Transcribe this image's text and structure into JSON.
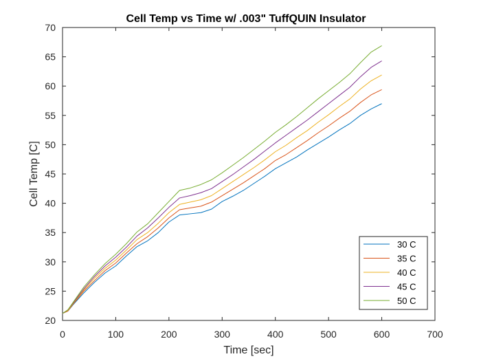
{
  "chart_data": {
    "type": "line",
    "title": "Cell Temp vs Time w/ .003\" TuffQUIN Insulator",
    "xlabel": "Time [sec]",
    "ylabel": "Cell Temp [C]",
    "xlim": [
      0,
      700
    ],
    "ylim": [
      20,
      70
    ],
    "xticks": [
      "0",
      "100",
      "200",
      "300",
      "400",
      "500",
      "600",
      "700"
    ],
    "yticks": [
      "20",
      "25",
      "30",
      "35",
      "40",
      "45",
      "50",
      "55",
      "60",
      "65",
      "70"
    ],
    "grid": false,
    "legend_position": "bottom-right",
    "x": [
      0,
      10,
      20,
      40,
      60,
      80,
      100,
      120,
      140,
      160,
      180,
      200,
      220,
      240,
      260,
      280,
      300,
      320,
      340,
      360,
      380,
      400,
      420,
      440,
      460,
      480,
      500,
      520,
      540,
      560,
      580,
      600
    ],
    "series": [
      {
        "name": "30 C",
        "color": "#0072BD",
        "values": [
          21.2,
          21.6,
          22.7,
          24.7,
          26.5,
          28.1,
          29.3,
          31.0,
          32.6,
          33.6,
          35.0,
          36.8,
          38.0,
          38.2,
          38.4,
          39.0,
          40.3,
          41.2,
          42.2,
          43.4,
          44.6,
          45.9,
          46.9,
          47.9,
          49.1,
          50.2,
          51.3,
          52.5,
          53.6,
          55.0,
          56.1,
          57.0
        ]
      },
      {
        "name": "35 C",
        "color": "#D95319",
        "values": [
          21.2,
          21.6,
          22.8,
          25.0,
          26.8,
          28.5,
          29.8,
          31.5,
          33.1,
          34.3,
          35.8,
          37.5,
          38.9,
          39.2,
          39.5,
          40.2,
          41.3,
          42.4,
          43.5,
          44.7,
          45.9,
          47.3,
          48.3,
          49.5,
          50.7,
          52.0,
          53.2,
          54.5,
          55.7,
          57.2,
          58.5,
          59.4
        ]
      },
      {
        "name": "40 C",
        "color": "#EDB120",
        "values": [
          21.2,
          21.7,
          22.9,
          25.2,
          27.2,
          28.9,
          30.3,
          32.0,
          33.8,
          35.0,
          36.6,
          38.4,
          39.8,
          40.2,
          40.6,
          41.3,
          42.5,
          43.7,
          44.9,
          46.1,
          47.4,
          48.8,
          49.9,
          51.2,
          52.4,
          53.8,
          55.1,
          56.5,
          57.8,
          59.5,
          60.9,
          61.9
        ]
      },
      {
        "name": "45 C",
        "color": "#7E2F8E",
        "values": [
          21.2,
          21.8,
          23.0,
          25.4,
          27.5,
          29.3,
          30.8,
          32.5,
          34.4,
          35.8,
          37.5,
          39.3,
          40.9,
          41.3,
          41.8,
          42.5,
          43.7,
          44.9,
          46.2,
          47.5,
          48.9,
          50.3,
          51.6,
          52.9,
          54.2,
          55.6,
          57.0,
          58.4,
          59.8,
          61.6,
          63.2,
          64.3
        ]
      },
      {
        "name": "50 C",
        "color": "#77AC30",
        "values": [
          21.2,
          21.8,
          23.1,
          25.7,
          27.8,
          29.7,
          31.3,
          33.1,
          35.1,
          36.5,
          38.4,
          40.3,
          42.2,
          42.6,
          43.2,
          44.0,
          45.2,
          46.5,
          47.8,
          49.2,
          50.6,
          52.1,
          53.4,
          54.8,
          56.3,
          57.8,
          59.2,
          60.6,
          62.1,
          64.0,
          65.8,
          66.9
        ]
      }
    ]
  }
}
